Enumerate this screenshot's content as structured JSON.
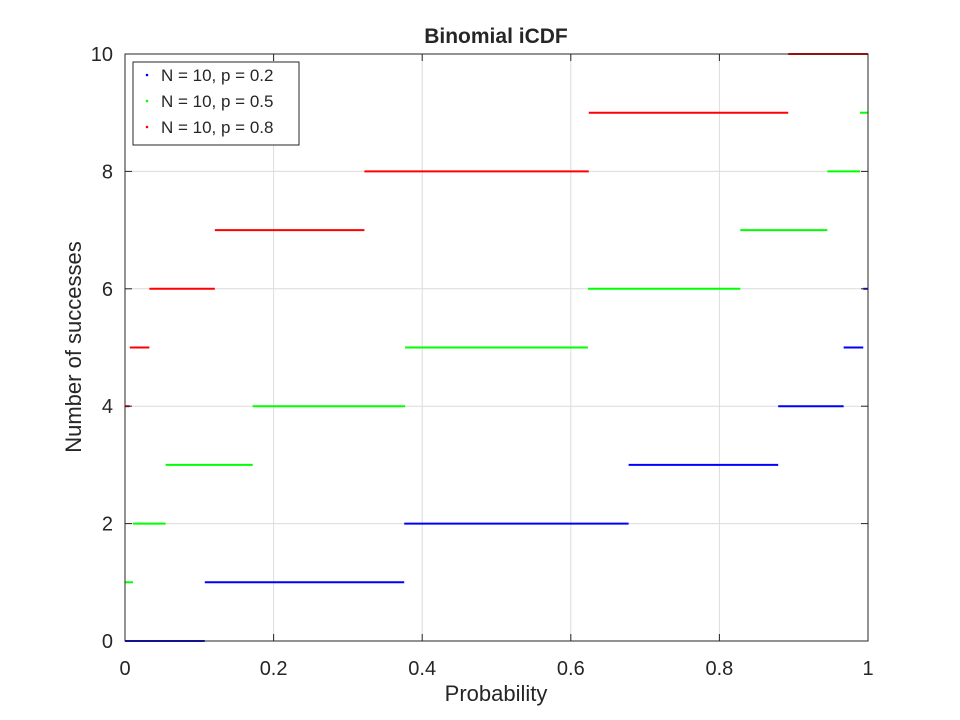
{
  "chart_data": {
    "type": "line",
    "title": "Binomial iCDF",
    "xlabel": "Probability",
    "ylabel": "Number of successes",
    "xlim": [
      0,
      1
    ],
    "ylim": [
      0,
      10
    ],
    "xticks": [
      {
        "value": 0,
        "label": "0"
      },
      {
        "value": 0.2,
        "label": "0.2"
      },
      {
        "value": 0.4,
        "label": "0.4"
      },
      {
        "value": 0.6,
        "label": "0.6"
      },
      {
        "value": 0.8,
        "label": "0.8"
      },
      {
        "value": 1,
        "label": "1"
      }
    ],
    "yticks": [
      {
        "value": 0,
        "label": "0"
      },
      {
        "value": 2,
        "label": "2"
      },
      {
        "value": 4,
        "label": "4"
      },
      {
        "value": 6,
        "label": "6"
      },
      {
        "value": 8,
        "label": "8"
      },
      {
        "value": 10,
        "label": "10"
      }
    ],
    "grid": true,
    "legend_position": "top-left",
    "series": [
      {
        "name": "N = 10, p = 0.2",
        "color": "#0000ff",
        "steps": [
          {
            "y": 0,
            "x_start": 0,
            "x_end": 0.1074
          },
          {
            "y": 1,
            "x_start": 0.1074,
            "x_end": 0.3758
          },
          {
            "y": 2,
            "x_start": 0.3758,
            "x_end": 0.6778
          },
          {
            "y": 3,
            "x_start": 0.6778,
            "x_end": 0.8791
          },
          {
            "y": 4,
            "x_start": 0.8791,
            "x_end": 0.9672
          },
          {
            "y": 5,
            "x_start": 0.9672,
            "x_end": 0.9936
          },
          {
            "y": 6,
            "x_start": 0.9936,
            "x_end": 1.0
          }
        ]
      },
      {
        "name": "N = 10, p = 0.5",
        "color": "#00ff00",
        "steps": [
          {
            "y": 1,
            "x_start": 0,
            "x_end": 0.0107
          },
          {
            "y": 2,
            "x_start": 0.0107,
            "x_end": 0.0547
          },
          {
            "y": 3,
            "x_start": 0.0547,
            "x_end": 0.1719
          },
          {
            "y": 4,
            "x_start": 0.1719,
            "x_end": 0.377
          },
          {
            "y": 5,
            "x_start": 0.377,
            "x_end": 0.623
          },
          {
            "y": 6,
            "x_start": 0.623,
            "x_end": 0.8281
          },
          {
            "y": 7,
            "x_start": 0.8281,
            "x_end": 0.9453
          },
          {
            "y": 8,
            "x_start": 0.9453,
            "x_end": 0.9893
          },
          {
            "y": 9,
            "x_start": 0.9893,
            "x_end": 1.0
          }
        ]
      },
      {
        "name": "N = 10, p = 0.8",
        "color": "#ff0000",
        "steps": [
          {
            "y": 4,
            "x_start": 0,
            "x_end": 0.0064
          },
          {
            "y": 5,
            "x_start": 0.0064,
            "x_end": 0.0328
          },
          {
            "y": 6,
            "x_start": 0.0328,
            "x_end": 0.1209
          },
          {
            "y": 7,
            "x_start": 0.1209,
            "x_end": 0.3222
          },
          {
            "y": 8,
            "x_start": 0.3222,
            "x_end": 0.6242
          },
          {
            "y": 9,
            "x_start": 0.6242,
            "x_end": 0.8926
          },
          {
            "y": 10,
            "x_start": 0.8926,
            "x_end": 1.0
          }
        ]
      }
    ]
  }
}
